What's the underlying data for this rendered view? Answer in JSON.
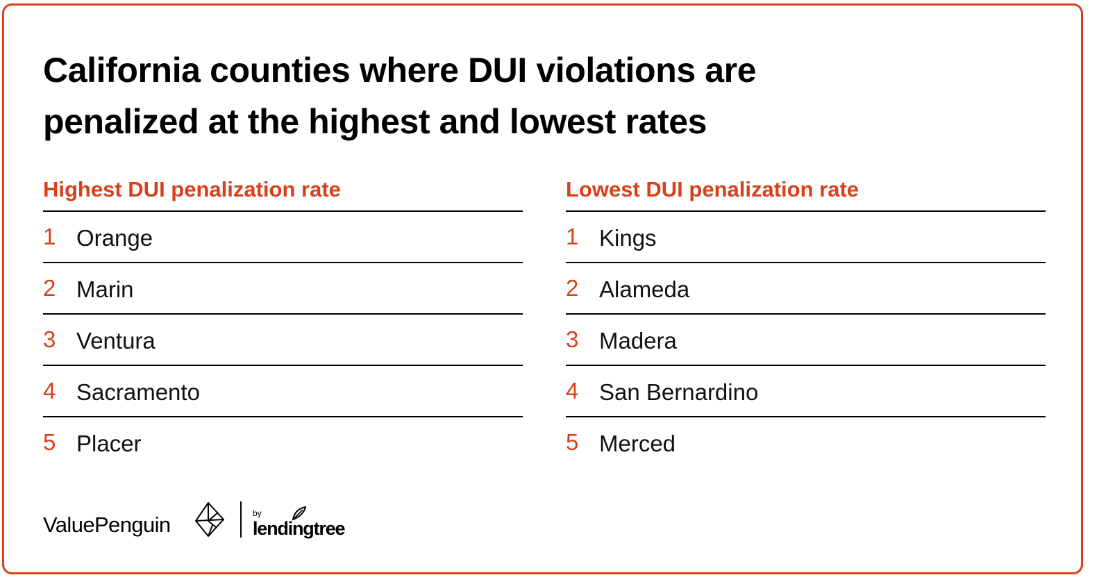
{
  "title_line1": "California counties where DUI violations are",
  "title_line2": "penalized at the highest and lowest rates",
  "highest": {
    "heading": "Highest DUI penalization rate",
    "items": [
      {
        "rank": "1",
        "name": "Orange"
      },
      {
        "rank": "2",
        "name": "Marin"
      },
      {
        "rank": "3",
        "name": "Ventura"
      },
      {
        "rank": "4",
        "name": "Sacramento"
      },
      {
        "rank": "5",
        "name": "Placer"
      }
    ]
  },
  "lowest": {
    "heading": "Lowest DUI penalization rate",
    "items": [
      {
        "rank": "1",
        "name": "Kings"
      },
      {
        "rank": "2",
        "name": "Alameda"
      },
      {
        "rank": "3",
        "name": "Madera"
      },
      {
        "rank": "4",
        "name": "San Bernardino"
      },
      {
        "rank": "5",
        "name": "Merced"
      }
    ]
  },
  "footer": {
    "brand": "ValuePenguin",
    "partner_prefix": "by",
    "partner": "lendingtree",
    "icons": [
      "valuepenguin-logo-icon",
      "lendingtree-leaf-icon"
    ]
  },
  "colors": {
    "accent": "#d9401a",
    "text": "#000000",
    "border": "#d9401a"
  }
}
